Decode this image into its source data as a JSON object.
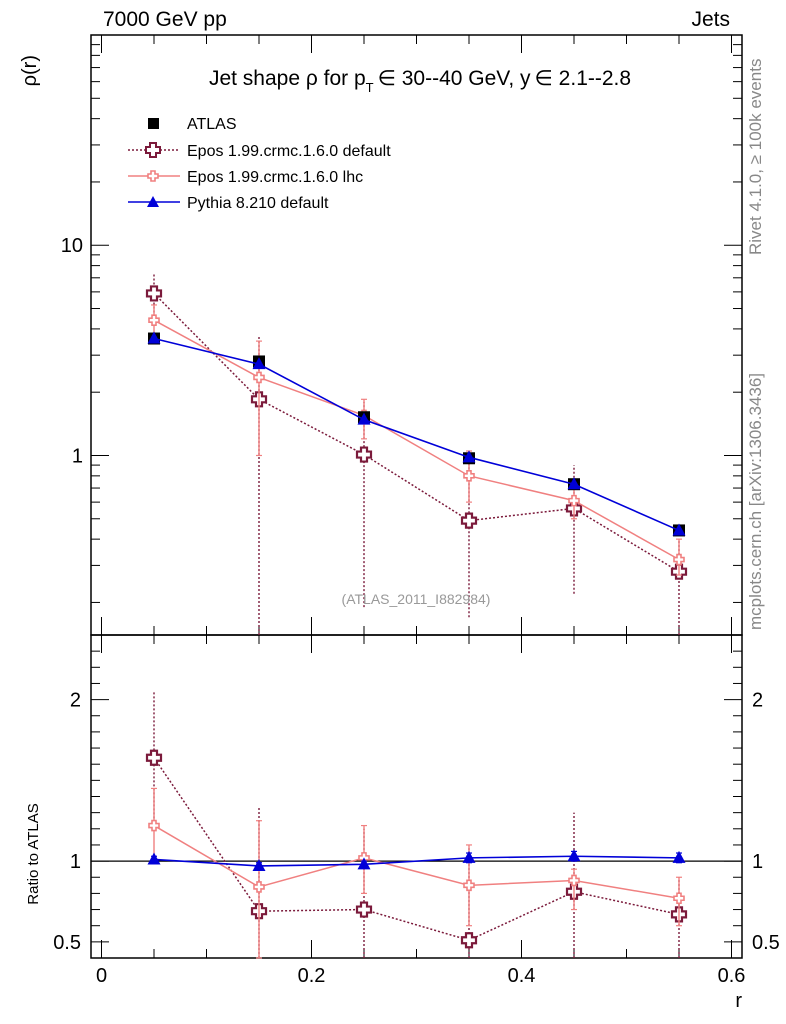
{
  "header": {
    "left": "7000 GeV pp",
    "right": "Jets"
  },
  "side_labels": {
    "rivet": "Rivet 4.1.0, ≥ 100k events",
    "mcplots": "mcplots.cern.ch [arXiv:1306.3436]"
  },
  "watermark": "(ATLAS_2011_I882984)",
  "colors": {
    "atlas": "#000000",
    "epos_default": "#7b1a3b",
    "epos_lhc": "#f08080",
    "pythia": "#0000d8"
  },
  "chart_data": [
    {
      "type": "line",
      "title": "Jet shape ρ for p_T ∈ 30--40 GeV, y ∈ 2.1--2.8",
      "title_parts": {
        "a": "Jet shape ρ for p",
        "sub": "T",
        "b": "∈ 30--40 GeV, y",
        "c": "∈ 2.1--2.8"
      },
      "ylabel": "ρ(r)",
      "yscale": "log",
      "ylim": [
        0.14,
        100
      ],
      "xlim": [
        -0.01,
        0.61
      ],
      "ytick_labels": [
        "1",
        "10"
      ],
      "legend_position": "top-left",
      "x": [
        0.05,
        0.15,
        0.25,
        0.35,
        0.45,
        0.55
      ],
      "series": [
        {
          "name": "ATLAS",
          "marker": "square",
          "values": [
            3.6,
            2.8,
            1.52,
            0.97,
            0.73,
            0.44
          ]
        },
        {
          "name": "Epos 1.99.crmc.1.6.0 default",
          "marker": "open-cross",
          "values": [
            5.9,
            1.85,
            1.01,
            0.49,
            0.56,
            0.28
          ],
          "err_low": [
            4.2,
            0.0,
            0.19,
            0.17,
            0.22,
            0.0
          ],
          "err_high": [
            7.4,
            3.7,
            1.8,
            0.95,
            0.9,
            0.4
          ]
        },
        {
          "name": "Epos 1.99.crmc.1.6.0 lhc",
          "marker": "cross",
          "values": [
            4.4,
            2.35,
            1.55,
            0.8,
            0.61,
            0.32
          ],
          "err_low": [
            3.6,
            1.0,
            1.2,
            0.6,
            0.5,
            0.27
          ],
          "err_high": [
            5.2,
            3.5,
            1.85,
            1.05,
            0.7,
            0.4
          ]
        },
        {
          "name": "Pythia 8.210 default",
          "marker": "triangle",
          "values": [
            3.6,
            2.72,
            1.48,
            0.98,
            0.73,
            0.44
          ]
        }
      ]
    },
    {
      "type": "line",
      "ylabel": "Ratio to ATLAS",
      "xlabel": "r",
      "ylim": [
        0.4,
        2.4
      ],
      "xlim": [
        -0.01,
        0.61
      ],
      "ytick_labels": [
        "0.5",
        "1",
        "2"
      ],
      "xtick_labels": [
        "0",
        "0.2",
        "0.4",
        "0.6"
      ],
      "x": [
        0.05,
        0.15,
        0.25,
        0.35,
        0.45,
        0.55
      ],
      "series": [
        {
          "name": "Epos 1.99.crmc.1.6.0 default",
          "values": [
            1.64,
            0.69,
            0.7,
            0.51,
            0.81,
            0.67
          ],
          "err_low": [
            1.19,
            0.0,
            0.0,
            0.0,
            0.3,
            0.0
          ],
          "err_high": [
            2.05,
            1.34,
            1.2,
            1.08,
            1.3,
            0.9
          ]
        },
        {
          "name": "Epos 1.99.crmc.1.6.0 lhc",
          "values": [
            1.22,
            0.84,
            1.02,
            0.85,
            0.88,
            0.77
          ],
          "err_low": [
            1.0,
            0.36,
            0.8,
            0.6,
            0.7,
            0.6
          ],
          "err_high": [
            1.45,
            1.25,
            1.22,
            1.1,
            0.95,
            0.9
          ]
        },
        {
          "name": "Pythia 8.210 default",
          "values": [
            1.01,
            0.97,
            0.98,
            1.02,
            1.03,
            1.02
          ],
          "err_low": [
            0.99,
            0.95,
            0.96,
            0.99,
            1.0,
            0.99
          ],
          "err_high": [
            1.03,
            0.99,
            1.0,
            1.05,
            1.06,
            1.05
          ]
        }
      ]
    }
  ]
}
